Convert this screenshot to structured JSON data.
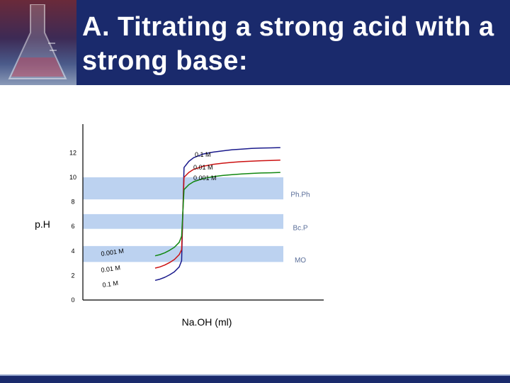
{
  "title": "A. Titrating a strong acid with a strong base:",
  "colors": {
    "header": "#1a2a6c",
    "band": "#bcd2f0",
    "blue": "#1a1a8c",
    "red": "#cc1111",
    "green": "#118811"
  },
  "chart_data": {
    "type": "line",
    "title": "",
    "xlabel": "Na.OH (ml)",
    "ylabel": "p.H",
    "ylim": [
      0,
      14
    ],
    "xlim": [
      0,
      100
    ],
    "y_ticks": [
      "0",
      "2",
      "4",
      "6",
      "8",
      "10",
      "12"
    ],
    "grid": false,
    "series": [
      {
        "name": "0.1 M",
        "color": "#1a1a8c",
        "x": [
          30,
          32,
          34,
          36,
          38,
          40,
          41,
          42,
          44,
          46,
          50,
          54,
          58,
          62,
          66,
          70,
          74,
          78,
          82
        ],
        "y": [
          1.6,
          1.7,
          1.85,
          2.05,
          2.3,
          2.7,
          3.2,
          10.8,
          11.3,
          11.6,
          11.9,
          12.05,
          12.15,
          12.25,
          12.3,
          12.35,
          12.38,
          12.4,
          12.42
        ]
      },
      {
        "name": "0.01 M",
        "color": "#cc1111",
        "x": [
          30,
          32,
          34,
          36,
          38,
          40,
          41,
          42,
          44,
          46,
          50,
          54,
          58,
          62,
          66,
          70,
          74,
          78,
          82
        ],
        "y": [
          2.6,
          2.7,
          2.85,
          3.05,
          3.3,
          3.7,
          4.1,
          10.0,
          10.4,
          10.65,
          10.9,
          11.05,
          11.15,
          11.22,
          11.28,
          11.32,
          11.35,
          11.37,
          11.4
        ]
      },
      {
        "name": "0.001 M",
        "color": "#118811",
        "x": [
          30,
          32,
          34,
          36,
          38,
          40,
          41,
          42,
          44,
          46,
          50,
          54,
          58,
          62,
          66,
          70,
          74,
          78,
          82
        ],
        "y": [
          3.6,
          3.7,
          3.85,
          4.05,
          4.3,
          4.7,
          5.2,
          9.0,
          9.4,
          9.65,
          9.9,
          10.05,
          10.15,
          10.22,
          10.28,
          10.32,
          10.35,
          10.37,
          10.4
        ]
      }
    ],
    "curve_labels_right": [
      "0.1 M",
      "0.01 M",
      "0.001 M"
    ],
    "curve_labels_left": [
      "0.001 M",
      "0.01 M",
      "0.1 M"
    ],
    "bands": [
      {
        "label": "Ph.Ph",
        "from": 8.2,
        "to": 10.0
      },
      {
        "label": "Bc.P",
        "from": 5.8,
        "to": 7.0
      },
      {
        "label": "MO",
        "from": 3.1,
        "to": 4.4
      }
    ]
  }
}
